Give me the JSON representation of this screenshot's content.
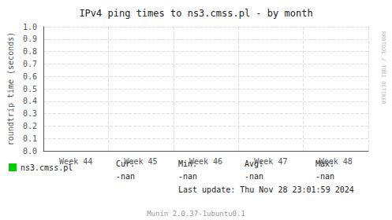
{
  "chart_data": {
    "type": "line",
    "title": "IPv4 ping times to ns3.cmss.pl - by month",
    "ylabel": "roundtrip time (seconds)",
    "categories": [
      "Week 44",
      "Week 45",
      "Week 46",
      "Week 47",
      "Week 48"
    ],
    "series": [
      {
        "name": "ns3.cmss.pl",
        "color": "#00cc00",
        "values": [
          null,
          null,
          null,
          null,
          null
        ]
      }
    ],
    "ylim": [
      0.0,
      1.0
    ],
    "yticks": [
      {
        "value": 0.0,
        "label": "0.0"
      },
      0.1,
      0.2,
      0.3,
      0.4,
      0.5,
      0.6,
      0.7,
      0.8,
      0.9,
      {
        "value": 1.0,
        "label": "1.0"
      }
    ],
    "grid": true,
    "legend": "bottom",
    "annotations": [
      "Cur:",
      "Min:",
      "Avg:",
      "Max:",
      "-nan",
      "-nan",
      "-nan",
      "-nan",
      "Last update: Thu Nov 28 23:01:59 2024",
      "Munin 2.0.37-1ubuntu0.1",
      "RRDTOOL / TOBI OETIKER"
    ]
  }
}
